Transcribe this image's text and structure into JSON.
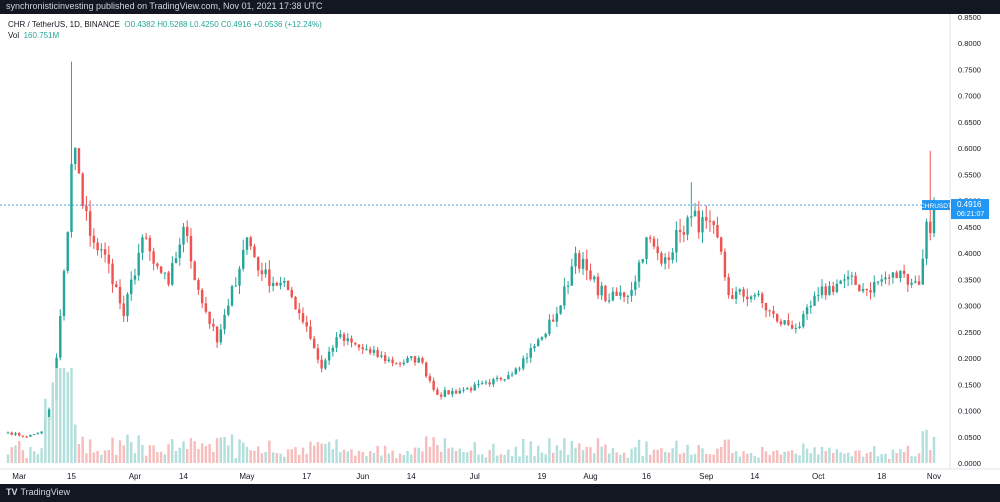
{
  "header": {
    "publish_text": "synchronisticinvesting published on TradingView.com, Nov 01, 2021 17:38 UTC"
  },
  "legend": {
    "symbol": "CHR / TetherUS, 1D, BINANCE",
    "ohlc": "O0.4382  H0.5288  L0.4250  C0.4916  +0.0536 (+12.24%)",
    "vol_label": "Vol",
    "vol_value": "160.751M"
  },
  "price_tag": {
    "ticker": "CHRUSDT",
    "price": "0.4916",
    "countdown": "06:21:07"
  },
  "footer": {
    "logo_mark": "TV",
    "logo_text": "TradingView"
  },
  "colors": {
    "up": "#26a69a",
    "down": "#ef5350",
    "price_line": "#2196f3",
    "vol_up": "#b2dfdb",
    "vol_down": "#f7bcbc"
  },
  "chart_data": {
    "type": "candlestick",
    "title": "CHR / TetherUS, 1D, BINANCE",
    "y_axis": {
      "ticks": [
        "0.8500",
        "0.8000",
        "0.7500",
        "0.7000",
        "0.6500",
        "0.6000",
        "0.5500",
        "0.5000",
        "0.4500",
        "0.4000",
        "0.3500",
        "0.3000",
        "0.2500",
        "0.2000",
        "0.1500",
        "0.1000",
        "0.0500",
        "0.0000"
      ],
      "ylim": [
        0.0,
        0.85
      ]
    },
    "x_axis": {
      "labels": [
        "Mar",
        "15",
        "Apr",
        "14",
        "May",
        "17",
        "Jun",
        "14",
        "Jul",
        "19",
        "Aug",
        "16",
        "Sep",
        "14",
        "Oct",
        "18",
        "Nov"
      ],
      "range": [
        "2021-02-26",
        "2021-11-01"
      ]
    },
    "last_price": 0.4916,
    "anchors": [
      {
        "date": "2021-02-26",
        "close": 0.058
      },
      {
        "date": "2021-03-03",
        "close": 0.05
      },
      {
        "date": "2021-03-07",
        "close": 0.06
      },
      {
        "date": "2021-03-10",
        "close": 0.12
      },
      {
        "date": "2021-03-12",
        "close": 0.28
      },
      {
        "date": "2021-03-14",
        "close": 0.44
      },
      {
        "date": "2021-03-15",
        "close": 0.57
      },
      {
        "date": "2021-03-16",
        "close": 0.6
      },
      {
        "date": "2021-03-18",
        "close": 0.49
      },
      {
        "date": "2021-03-21",
        "close": 0.42
      },
      {
        "date": "2021-03-25",
        "close": 0.38
      },
      {
        "date": "2021-03-29",
        "close": 0.28
      },
      {
        "date": "2021-04-03",
        "close": 0.43
      },
      {
        "date": "2021-04-06",
        "close": 0.38
      },
      {
        "date": "2021-04-10",
        "close": 0.34
      },
      {
        "date": "2021-04-14",
        "close": 0.45
      },
      {
        "date": "2021-04-18",
        "close": 0.33
      },
      {
        "date": "2021-04-23",
        "close": 0.23
      },
      {
        "date": "2021-04-26",
        "close": 0.3
      },
      {
        "date": "2021-05-01",
        "close": 0.43
      },
      {
        "date": "2021-05-05",
        "close": 0.36
      },
      {
        "date": "2021-05-12",
        "close": 0.33
      },
      {
        "date": "2021-05-17",
        "close": 0.26
      },
      {
        "date": "2021-05-21",
        "close": 0.18
      },
      {
        "date": "2021-05-25",
        "close": 0.24
      },
      {
        "date": "2021-06-03",
        "close": 0.21
      },
      {
        "date": "2021-06-10",
        "close": 0.19
      },
      {
        "date": "2021-06-16",
        "close": 0.2
      },
      {
        "date": "2021-06-21",
        "close": 0.13
      },
      {
        "date": "2021-06-28",
        "close": 0.14
      },
      {
        "date": "2021-07-05",
        "close": 0.15
      },
      {
        "date": "2021-07-12",
        "close": 0.18
      },
      {
        "date": "2021-07-19",
        "close": 0.24
      },
      {
        "date": "2021-07-24",
        "close": 0.3
      },
      {
        "date": "2021-07-28",
        "close": 0.4
      },
      {
        "date": "2021-08-01",
        "close": 0.35
      },
      {
        "date": "2021-08-06",
        "close": 0.31
      },
      {
        "date": "2021-08-12",
        "close": 0.33
      },
      {
        "date": "2021-08-16",
        "close": 0.43
      },
      {
        "date": "2021-08-20",
        "close": 0.38
      },
      {
        "date": "2021-08-25",
        "close": 0.44
      },
      {
        "date": "2021-08-28",
        "close": 0.47
      },
      {
        "date": "2021-09-04",
        "close": 0.43
      },
      {
        "date": "2021-09-07",
        "close": 0.32
      },
      {
        "date": "2021-09-14",
        "close": 0.32
      },
      {
        "date": "2021-09-20",
        "close": 0.27
      },
      {
        "date": "2021-09-26",
        "close": 0.26
      },
      {
        "date": "2021-10-01",
        "close": 0.32
      },
      {
        "date": "2021-10-08",
        "close": 0.35
      },
      {
        "date": "2021-10-14",
        "close": 0.33
      },
      {
        "date": "2021-10-18",
        "close": 0.35
      },
      {
        "date": "2021-10-24",
        "close": 0.36
      },
      {
        "date": "2021-10-28",
        "close": 0.34
      },
      {
        "date": "2021-10-30",
        "close": 0.46
      },
      {
        "date": "2021-10-31",
        "close": 0.438
      },
      {
        "date": "2021-11-01",
        "close": 0.4916
      }
    ],
    "notable_highs": [
      {
        "date": "2021-03-15",
        "high": 0.765
      },
      {
        "date": "2021-08-28",
        "high": 0.535
      },
      {
        "date": "2021-10-31",
        "high": 0.595
      }
    ]
  }
}
